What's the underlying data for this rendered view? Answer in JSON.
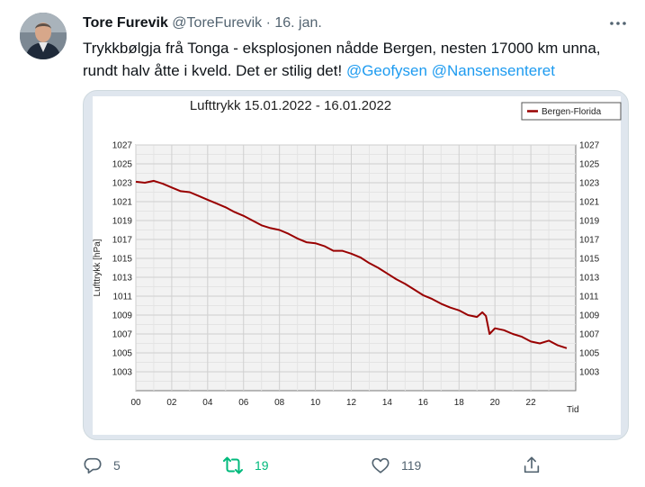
{
  "tweet": {
    "author_name": "Tore Furevik",
    "handle": "@ToreFurevik",
    "separator": "·",
    "date": "16. jan.",
    "text": "Trykkbølgja frå Tonga - eksplosjonen nådde Bergen, nesten 17000 km unna, rundt halv åtte i kveld. Det er stilig det!",
    "mentions": [
      "@Geofysen",
      "@Nansensenteret"
    ]
  },
  "actions": {
    "replies": "5",
    "retweets": "19",
    "likes": "119"
  },
  "icons": [
    "more-icon",
    "reply-icon",
    "retweet-icon",
    "like-icon",
    "share-icon"
  ],
  "colors": {
    "accent": "#1d9bf0",
    "retweet_green": "#00ba7c",
    "series_line": "#990000",
    "chart_panel": "#dfe6ee"
  },
  "chart_data": {
    "type": "line",
    "title": "Lufttrykk 15.01.2022 - 16.01.2022",
    "xlabel": "Tid",
    "ylabel": "Lufttrykk [hPa]",
    "xlim": [
      0,
      24.5
    ],
    "ylim": [
      1001,
      1027
    ],
    "x_ticks": [
      0,
      2,
      4,
      6,
      8,
      10,
      12,
      14,
      16,
      18,
      20,
      22
    ],
    "x_tick_labels": [
      "00",
      "02",
      "04",
      "06",
      "08",
      "10",
      "12",
      "14",
      "16",
      "18",
      "20",
      "22"
    ],
    "y_ticks": [
      1003,
      1005,
      1007,
      1009,
      1011,
      1013,
      1015,
      1017,
      1019,
      1021,
      1023,
      1025,
      1027
    ],
    "grid": true,
    "legend_position": "top-right",
    "series": [
      {
        "name": "Bergen-Florida",
        "x": [
          0,
          0.5,
          1,
          1.5,
          2,
          2.5,
          3,
          3.5,
          4,
          4.5,
          5,
          5.5,
          6,
          6.5,
          7,
          7.5,
          8,
          8.5,
          9,
          9.5,
          10,
          10.5,
          11,
          11.5,
          12,
          12.5,
          13,
          13.5,
          14,
          14.5,
          15,
          15.5,
          16,
          16.5,
          17,
          17.5,
          18,
          18.5,
          19,
          19.3,
          19.5,
          19.7,
          20,
          20.5,
          21,
          21.5,
          22,
          22.5,
          23,
          23.5,
          24
        ],
        "y": [
          1023.1,
          1023.0,
          1023.2,
          1022.9,
          1022.5,
          1022.1,
          1022.0,
          1021.6,
          1021.2,
          1020.8,
          1020.4,
          1019.9,
          1019.5,
          1019.0,
          1018.5,
          1018.2,
          1018.0,
          1017.6,
          1017.1,
          1016.7,
          1016.6,
          1016.3,
          1015.8,
          1015.8,
          1015.5,
          1015.1,
          1014.5,
          1014.0,
          1013.4,
          1012.8,
          1012.3,
          1011.7,
          1011.1,
          1010.7,
          1010.2,
          1009.8,
          1009.5,
          1009.0,
          1008.8,
          1009.3,
          1008.9,
          1007.0,
          1007.6,
          1007.4,
          1007.0,
          1006.7,
          1006.2,
          1006.0,
          1006.3,
          1005.8,
          1005.5
        ]
      }
    ]
  }
}
